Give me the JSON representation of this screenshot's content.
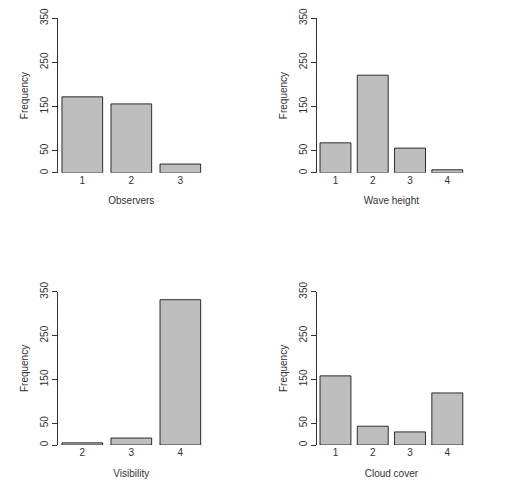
{
  "chart_data": [
    {
      "type": "bar",
      "xlabel": "Observers",
      "ylabel": "Frequency",
      "categories": [
        "1",
        "2",
        "3"
      ],
      "values": [
        172,
        156,
        20
      ],
      "color": "#bebebe",
      "ylim": [
        0,
        350
      ],
      "yticks": [
        0,
        50,
        150,
        250,
        350
      ],
      "grid": false
    },
    {
      "type": "bar",
      "xlabel": "Wave height",
      "ylabel": "Frequency",
      "categories": [
        "1",
        "2",
        "3",
        "4"
      ],
      "values": [
        68,
        221,
        56,
        7
      ],
      "color": "#bebebe",
      "ylim": [
        0,
        350
      ],
      "yticks": [
        0,
        50,
        150,
        250,
        350
      ],
      "grid": false
    },
    {
      "type": "bar",
      "xlabel": "Visibility",
      "ylabel": "Frequency",
      "categories": [
        "2",
        "3",
        "4"
      ],
      "values": [
        5,
        16,
        332
      ],
      "color": "#bebebe",
      "ylim": [
        0,
        350
      ],
      "yticks": [
        0,
        50,
        150,
        250,
        350
      ],
      "grid": false
    },
    {
      "type": "bar",
      "xlabel": "Cloud cover",
      "ylabel": "Frequency",
      "categories": [
        "1",
        "2",
        "3",
        "4"
      ],
      "values": [
        158,
        43,
        30,
        119
      ],
      "color": "#bebebe",
      "ylim": [
        0,
        350
      ],
      "yticks": [
        0,
        50,
        150,
        250,
        350
      ],
      "grid": false
    }
  ]
}
